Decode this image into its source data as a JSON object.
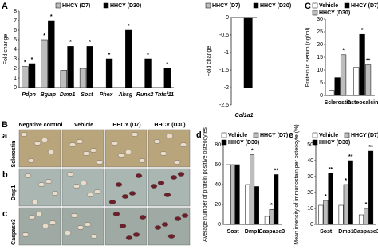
{
  "chart_data": [
    {
      "type": "bar",
      "panel": "A",
      "ylabel": "Fold change",
      "category_style": "italic",
      "categories": [
        "Pdpn",
        "Bglap",
        "Dmp1",
        "Sost",
        "Phex",
        "Ahsg",
        "Runx2",
        "Tnfsf11"
      ],
      "series": [
        {
          "name": "HHCY (D7)",
          "color": "#bdbdbd",
          "values": [
            2.2,
            5.0,
            1.8,
            2.0,
            null,
            null,
            null,
            null
          ],
          "labels": [
            "*",
            "*",
            null,
            null,
            null,
            null,
            null,
            null
          ]
        },
        {
          "name": "HHCY (D30)",
          "color": "#000000",
          "values": [
            2.5,
            7.0,
            4.3,
            4.3,
            3.0,
            6.0,
            3.0,
            2.0
          ],
          "labels": [
            "*",
            "*",
            "*",
            "*",
            "*",
            "*",
            "*",
            "*"
          ]
        }
      ],
      "ylim": [
        0,
        8
      ],
      "yticks": [
        0,
        1,
        2,
        3,
        4,
        5,
        6,
        7,
        8
      ]
    },
    {
      "type": "bar",
      "ylabel": "Fold change",
      "category_style": "italic",
      "categories": [
        "Col1a1"
      ],
      "series": [
        {
          "name": "HHCY (D7)",
          "color": "#bdbdbd",
          "values": [
            null
          ]
        },
        {
          "name": "HHCY (D30)",
          "color": "#000000",
          "values": [
            -2.0
          ]
        }
      ],
      "ylim": [
        -2.5,
        0
      ],
      "yticks": [
        0,
        -0.5,
        -1,
        -1.5,
        -2,
        -2.5
      ]
    },
    {
      "type": "bar",
      "panel": "C",
      "ylabel": "Protein in serum (ng/ml)",
      "categories": [
        "Sclerostin",
        "Osteocalcin"
      ],
      "series": [
        {
          "name": "Vehicle",
          "color": "#ffffff",
          "values": [
            2,
            11
          ]
        },
        {
          "name": "HHCY (D7)",
          "color": "#000000",
          "values": [
            7,
            24
          ],
          "labels": [
            null,
            "*"
          ]
        },
        {
          "name": "HHCY (D30)",
          "color": "#bdbdbd",
          "values": [
            16,
            12
          ],
          "labels": [
            "*",
            "**"
          ]
        }
      ],
      "ylim": [
        0,
        30
      ],
      "yticks": [
        0,
        5,
        10,
        15,
        20,
        25,
        30
      ]
    },
    {
      "type": "bar",
      "panel": "d",
      "ylabel": "Average number of protein positive osteocytes",
      "categories": [
        "Sost",
        "Dmp1",
        "Caspase3"
      ],
      "series": [
        {
          "name": "Vehicle",
          "color": "#ffffff",
          "values": [
            60,
            40,
            8
          ]
        },
        {
          "name": "HHCY (D7)",
          "color": "#bdbdbd",
          "values": [
            60,
            70,
            15
          ],
          "labels": [
            null,
            "*",
            "*"
          ]
        },
        {
          "name": "HHCY (D30)",
          "color": "#000000",
          "values": [
            60,
            38,
            50
          ],
          "labels": [
            null,
            null,
            "**"
          ]
        }
      ],
      "ylim": [
        0,
        80
      ],
      "yticks": [
        0,
        20,
        40,
        60,
        80
      ]
    },
    {
      "type": "bar",
      "panel": "e",
      "ylabel": "Mean intensity of immunostain per osteocyte (%)",
      "categories": [
        "Sost",
        "Dmp1",
        "Caspase3"
      ],
      "series": [
        {
          "name": "Vehicle",
          "color": "#ffffff",
          "values": [
            12,
            12,
            6
          ]
        },
        {
          "name": "HHCY (D7)",
          "color": "#bdbdbd",
          "values": [
            15,
            25,
            10
          ],
          "labels": [
            "*",
            "*",
            "*"
          ]
        },
        {
          "name": "HHCY (D30)",
          "color": "#000000",
          "values": [
            32,
            40,
            46
          ],
          "labels": [
            "**",
            "**",
            "**"
          ]
        }
      ],
      "ylim": [
        0,
        50
      ],
      "yticks": [
        0,
        10,
        20,
        30,
        40,
        50
      ]
    }
  ],
  "micrographs": {
    "panel": "B",
    "columns": [
      "Negative control",
      "Vehicle",
      "HHCY (D7)",
      "HHCY (D30)"
    ],
    "rows": [
      {
        "letter": "a",
        "label": "Sclerostin"
      },
      {
        "letter": "b",
        "label": "Dmp1"
      },
      {
        "letter": "c",
        "label": "Caspase3"
      }
    ]
  }
}
